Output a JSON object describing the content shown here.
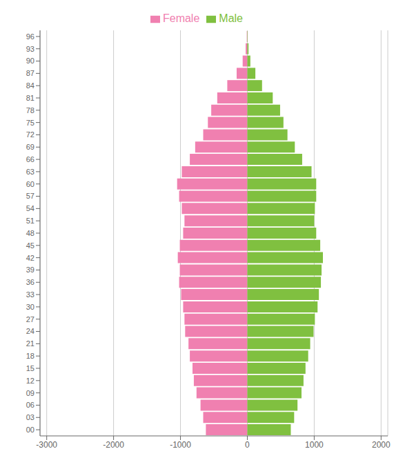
{
  "chart_data": {
    "type": "bar",
    "orientation": "horizontal",
    "categories": [
      "00",
      "03",
      "06",
      "09",
      "12",
      "15",
      "18",
      "21",
      "24",
      "27",
      "30",
      "33",
      "36",
      "39",
      "42",
      "45",
      "48",
      "51",
      "54",
      "57",
      "60",
      "63",
      "66",
      "69",
      "72",
      "75",
      "78",
      "81",
      "84",
      "87",
      "90",
      "93",
      "96"
    ],
    "series": [
      {
        "name": "Female",
        "color": "#f080b0",
        "values": [
          -620,
          -660,
          -700,
          -760,
          -800,
          -820,
          -860,
          -880,
          -930,
          -940,
          -960,
          -990,
          -1020,
          -1010,
          -1040,
          -1010,
          -960,
          -940,
          -980,
          -1020,
          -1050,
          -980,
          -860,
          -780,
          -660,
          -590,
          -540,
          -450,
          -300,
          -160,
          -70,
          -25,
          -8
        ]
      },
      {
        "name": "Male",
        "color": "#80c040",
        "values": [
          650,
          700,
          750,
          810,
          840,
          870,
          910,
          940,
          990,
          1010,
          1050,
          1070,
          1100,
          1110,
          1130,
          1090,
          1030,
          1000,
          1010,
          1030,
          1030,
          960,
          820,
          710,
          600,
          540,
          490,
          380,
          220,
          120,
          45,
          18,
          5
        ]
      }
    ],
    "xlim": [
      -3100,
      2100
    ],
    "xticks": [
      -3000,
      -2000,
      -1000,
      0,
      1000,
      2000
    ],
    "grid": true,
    "legend": "top"
  }
}
